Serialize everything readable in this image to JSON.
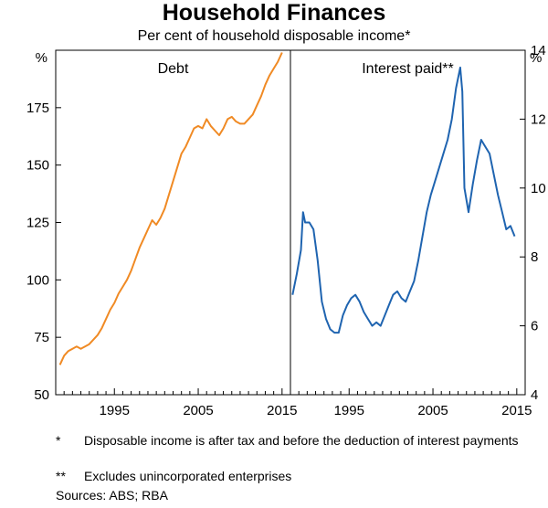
{
  "title": "Household Finances",
  "subtitle": "Per cent of household disposable income*",
  "footnotes": [
    {
      "mark": "*",
      "text": "Disposable income is after tax and before the deduction of interest payments"
    },
    {
      "mark": "**",
      "text": "Excludes unincorporated enterprises"
    }
  ],
  "sources": "Sources:   ABS; RBA",
  "colors": {
    "debt": "#f08a24",
    "interest": "#1f64b0",
    "axis": "#000000",
    "gridline": "#d3d3d3"
  },
  "chart_data": [
    {
      "type": "line",
      "panel_title": "Debt",
      "ylabel": "%",
      "ylim": [
        50,
        200
      ],
      "yticks": [
        50,
        75,
        100,
        125,
        150,
        175
      ],
      "xlim": [
        1988,
        2016
      ],
      "xticks": [
        1995,
        2005,
        2015
      ],
      "series": [
        {
          "name": "Debt",
          "color": "#f08a24",
          "x": [
            1988.5,
            1989,
            1989.5,
            1990,
            1990.5,
            1991,
            1991.5,
            1992,
            1992.5,
            1993,
            1993.5,
            1994,
            1994.5,
            1995,
            1995.5,
            1996,
            1996.5,
            1997,
            1997.5,
            1998,
            1998.5,
            1999,
            1999.5,
            2000,
            2000.5,
            2001,
            2001.5,
            2002,
            2002.5,
            2003,
            2003.5,
            2004,
            2004.5,
            2005,
            2005.5,
            2006,
            2006.5,
            2007,
            2007.5,
            2008,
            2008.5,
            2009,
            2009.5,
            2010,
            2010.5,
            2011,
            2011.5,
            2012,
            2012.5,
            2013,
            2013.5,
            2014,
            2014.5,
            2015
          ],
          "y": [
            63,
            67,
            69,
            70,
            71,
            70,
            71,
            72,
            74,
            76,
            79,
            83,
            87,
            90,
            94,
            97,
            100,
            104,
            109,
            114,
            118,
            122,
            126,
            124,
            127,
            131,
            137,
            143,
            149,
            155,
            158,
            162,
            166,
            167,
            166,
            170,
            167,
            165,
            163,
            166,
            170,
            171,
            169,
            168,
            168,
            170,
            172,
            176,
            180,
            185,
            189,
            192,
            195,
            199
          ]
        }
      ]
    },
    {
      "type": "line",
      "panel_title": "Interest paid**",
      "ylabel": "%",
      "ylim": [
        4,
        14
      ],
      "yticks": [
        4,
        6,
        8,
        10,
        12,
        14
      ],
      "xlim": [
        1988,
        2016
      ],
      "xticks": [
        1995,
        2005,
        2015
      ],
      "series": [
        {
          "name": "Interest paid",
          "color": "#1f64b0",
          "x": [
            1988.25,
            1988.75,
            1989.25,
            1989.5,
            1989.75,
            1990.25,
            1990.75,
            1991.25,
            1991.75,
            1992.25,
            1992.75,
            1993.25,
            1993.75,
            1994.25,
            1994.75,
            1995.25,
            1995.75,
            1996.25,
            1996.75,
            1997.25,
            1997.75,
            1998.25,
            1998.75,
            1999.25,
            1999.75,
            2000.25,
            2000.75,
            2001.25,
            2001.75,
            2002.25,
            2002.75,
            2003.25,
            2003.75,
            2004.25,
            2004.75,
            2005.25,
            2005.75,
            2006.25,
            2006.75,
            2007.25,
            2007.75,
            2008.25,
            2008.5,
            2008.75,
            2009.25,
            2009.75,
            2010.25,
            2010.75,
            2011.25,
            2011.75,
            2012.25,
            2012.75,
            2013.25,
            2013.75,
            2014.25,
            2014.75
          ],
          "y": [
            6.9,
            7.5,
            8.2,
            9.3,
            9.0,
            9.0,
            8.8,
            7.9,
            6.7,
            6.2,
            5.9,
            5.8,
            5.8,
            6.3,
            6.6,
            6.8,
            6.9,
            6.7,
            6.4,
            6.2,
            6.0,
            6.1,
            6.0,
            6.3,
            6.6,
            6.9,
            7.0,
            6.8,
            6.7,
            7.0,
            7.3,
            7.9,
            8.6,
            9.3,
            9.8,
            10.2,
            10.6,
            11.0,
            11.4,
            12.0,
            12.9,
            13.5,
            12.8,
            10.0,
            9.3,
            10.1,
            10.8,
            11.4,
            11.2,
            11.0,
            10.4,
            9.8,
            9.3,
            8.8,
            8.9,
            8.6
          ]
        }
      ]
    }
  ]
}
